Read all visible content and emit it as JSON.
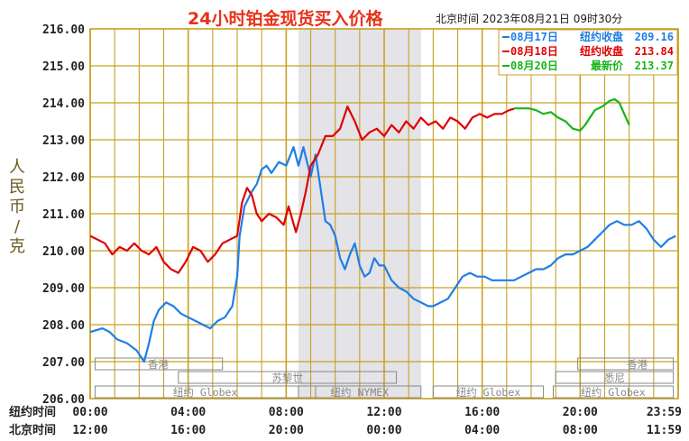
{
  "header": {
    "title": "24小时铂金现货买入价格",
    "timestamp": "北京时间  2023年08月21日 09时30分"
  },
  "colors": {
    "grid": "#c8a020",
    "axis_text": "#222222",
    "blue": "#1e7ee6",
    "red": "#e00000",
    "green": "#18b418",
    "shade": "#e3e3e8",
    "session_text": "#888888"
  },
  "chart_data": {
    "type": "line",
    "ylabel": "人民币/克",
    "ylim": [
      206,
      216
    ],
    "y_ticks": [
      "216.00",
      "215.00",
      "214.00",
      "213.00",
      "212.00",
      "211.00",
      "210.00",
      "209.00",
      "208.00",
      "207.00",
      "206.00"
    ],
    "x_range": [
      0,
      24
    ],
    "x_ticks_top_label": "纽约时间",
    "x_ticks_top": [
      "00:00",
      "04:00",
      "08:00",
      "12:00",
      "16:00",
      "20:00",
      "23:59"
    ],
    "x_ticks_bottom_label": "北京时间",
    "x_ticks_bottom": [
      "12:00",
      "16:00",
      "20:00",
      "00:00",
      "04:00",
      "08:00",
      "11:59"
    ],
    "x_tick_positions": [
      0,
      4,
      8,
      12,
      16,
      20,
      24
    ],
    "shaded_range": [
      8.5,
      13.5
    ],
    "sessions": [
      {
        "name": "香港",
        "start": 0.2,
        "end": 5.4,
        "level": 1
      },
      {
        "name": "苏黎世",
        "start": 3.6,
        "end": 12.5,
        "level": 2
      },
      {
        "name": "纽约 Globex",
        "start": 0.2,
        "end": 9.2,
        "level": 3
      },
      {
        "name": "纽约 NYMEX",
        "start": 8.5,
        "end": 13.5,
        "level": 3
      },
      {
        "name": "纽约 Globex",
        "start": 14.0,
        "end": 18.5,
        "level": 3
      },
      {
        "name": "香港",
        "start": 19.9,
        "end": 23.8,
        "level": 1
      },
      {
        "name": "悉尼",
        "start": 19.0,
        "end": 23.8,
        "level": 2
      },
      {
        "name": "纽约 Globex",
        "start": 18.9,
        "end": 23.8,
        "level": 3
      }
    ],
    "legend": {
      "placement": "top-right",
      "entries": [
        {
          "date": "08月17日",
          "label": "纽约收盘",
          "value": "209.16",
          "color": "#1e7ee6"
        },
        {
          "date": "08月18日",
          "label": "纽约收盘",
          "value": "213.84",
          "color": "#e00000"
        },
        {
          "date": "08月20日",
          "label": "最新价",
          "value": "213.37",
          "color": "#18b418"
        }
      ]
    },
    "series": [
      {
        "color": "#1e7ee6",
        "x": [
          0,
          0.5,
          0.8,
          1.1,
          1.5,
          1.9,
          2.2,
          2.4,
          2.6,
          2.8,
          3.1,
          3.4,
          3.7,
          4.0,
          4.3,
          4.6,
          4.9,
          5.2,
          5.5,
          5.8,
          6.0,
          6.1,
          6.3,
          6.6,
          6.8,
          7.0,
          7.2,
          7.4,
          7.7,
          8.0,
          8.3,
          8.5,
          8.7,
          9.0,
          9.2,
          9.4,
          9.6,
          9.8,
          10.0,
          10.2,
          10.4,
          10.6,
          10.8,
          11.0,
          11.2,
          11.4,
          11.6,
          11.8,
          12.0,
          12.3,
          12.6,
          12.9,
          13.2,
          13.5,
          13.8,
          14.0,
          14.3,
          14.6,
          14.9,
          15.2,
          15.5,
          15.8,
          16.1,
          16.4,
          16.7,
          17.0,
          17.3,
          17.6,
          17.9,
          18.2,
          18.5,
          18.8,
          19.1,
          19.4,
          19.7,
          20.0,
          20.3,
          20.6,
          20.9,
          21.2,
          21.5,
          21.8,
          22.1,
          22.4,
          22.7,
          23.0,
          23.3,
          23.6,
          23.9
        ],
        "y": [
          207.8,
          207.9,
          207.8,
          207.6,
          207.5,
          207.3,
          207.0,
          207.5,
          208.1,
          208.4,
          208.6,
          208.5,
          208.3,
          208.2,
          208.1,
          208.0,
          207.9,
          208.1,
          208.2,
          208.5,
          209.3,
          210.4,
          211.2,
          211.6,
          211.8,
          212.2,
          212.3,
          212.1,
          212.4,
          212.3,
          212.8,
          212.3,
          212.8,
          212.0,
          212.6,
          211.7,
          210.8,
          210.7,
          210.4,
          209.8,
          209.5,
          209.9,
          210.2,
          209.6,
          209.3,
          209.4,
          209.8,
          209.6,
          209.6,
          209.2,
          209.0,
          208.9,
          208.7,
          208.6,
          208.5,
          208.5,
          208.6,
          208.7,
          209.0,
          209.3,
          209.4,
          209.3,
          209.3,
          209.2,
          209.2,
          209.2,
          209.2,
          209.3,
          209.4,
          209.5,
          209.5,
          209.6,
          209.8,
          209.9,
          209.9,
          210.0,
          210.1,
          210.3,
          210.5,
          210.7,
          210.8,
          210.7,
          210.7,
          210.8,
          210.6,
          210.3,
          210.1,
          210.3,
          210.4
        ]
      },
      {
        "color": "#e00000",
        "x": [
          0,
          0.3,
          0.6,
          0.9,
          1.2,
          1.5,
          1.8,
          2.1,
          2.4,
          2.7,
          3.0,
          3.3,
          3.6,
          3.9,
          4.2,
          4.5,
          4.8,
          5.1,
          5.4,
          5.7,
          6.0,
          6.2,
          6.4,
          6.6,
          6.8,
          7.0,
          7.3,
          7.6,
          7.9,
          8.1,
          8.4,
          8.6,
          8.8,
          9.0,
          9.3,
          9.6,
          9.9,
          10.2,
          10.5,
          10.8,
          11.1,
          11.4,
          11.7,
          12.0,
          12.3,
          12.6,
          12.9,
          13.2,
          13.5,
          13.8,
          14.1,
          14.4,
          14.7,
          15.0,
          15.3,
          15.6,
          15.9,
          16.2,
          16.5,
          16.8,
          17.1,
          17.3
        ],
        "y": [
          210.4,
          210.3,
          210.2,
          209.9,
          210.1,
          210.0,
          210.2,
          210.0,
          209.9,
          210.1,
          209.7,
          209.5,
          209.4,
          209.7,
          210.1,
          210.0,
          209.7,
          209.9,
          210.2,
          210.3,
          210.4,
          211.3,
          211.7,
          211.5,
          211.0,
          210.8,
          211.0,
          210.9,
          210.7,
          211.2,
          210.5,
          211.0,
          211.6,
          212.3,
          212.6,
          213.1,
          213.1,
          213.3,
          213.9,
          213.5,
          213.0,
          213.2,
          213.3,
          213.1,
          213.4,
          213.2,
          213.5,
          213.3,
          213.6,
          213.4,
          213.5,
          213.3,
          213.6,
          213.5,
          213.3,
          213.6,
          213.7,
          213.6,
          213.7,
          213.7,
          213.8,
          213.84
        ]
      },
      {
        "color": "#18b418",
        "x": [
          17.3,
          17.6,
          17.9,
          18.2,
          18.5,
          18.8,
          19.1,
          19.4,
          19.7,
          20.0,
          20.2,
          20.4,
          20.6,
          20.9,
          21.2,
          21.4,
          21.6,
          21.8,
          22.0
        ],
        "y": [
          213.85,
          213.85,
          213.85,
          213.8,
          213.7,
          213.75,
          213.6,
          213.5,
          213.3,
          213.25,
          213.4,
          213.6,
          213.8,
          213.9,
          214.05,
          214.1,
          214.0,
          213.7,
          213.4
        ]
      }
    ]
  }
}
